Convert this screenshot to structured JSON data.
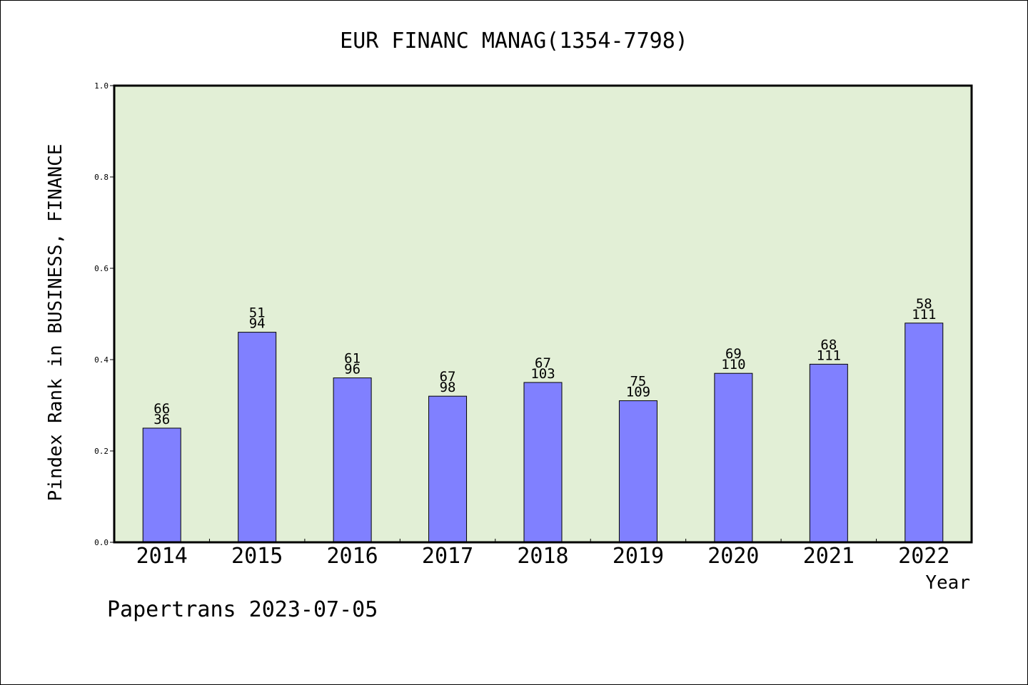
{
  "chart_data": {
    "type": "bar",
    "title": "EUR FINANC MANAG(1354-7798)",
    "xlabel": "Year",
    "ylabel": "Pindex Rank in BUSINESS, FINANCE",
    "ylim": [
      0,
      1.0
    ],
    "yticks": [
      "0.0",
      "0.2",
      "0.4",
      "0.6",
      "0.8",
      "1.0"
    ],
    "categories": [
      "2014",
      "2015",
      "2016",
      "2017",
      "2018",
      "2019",
      "2020",
      "2021",
      "2022"
    ],
    "values": [
      0.25,
      0.46,
      0.36,
      0.32,
      0.35,
      0.31,
      0.37,
      0.39,
      0.48
    ],
    "labels_top": [
      "66",
      "51",
      "61",
      "67",
      "67",
      "75",
      "69",
      "68",
      "58"
    ],
    "labels_bottom": [
      "36",
      "94",
      "96",
      "98",
      "103",
      "109",
      "110",
      "111",
      "111"
    ],
    "grid": false,
    "colors": {
      "bar": "#8080ff",
      "plot_bg": "#e2efd6",
      "axis": "#000000"
    }
  },
  "footer": {
    "credit": "Papertrans 2023-07-05"
  }
}
